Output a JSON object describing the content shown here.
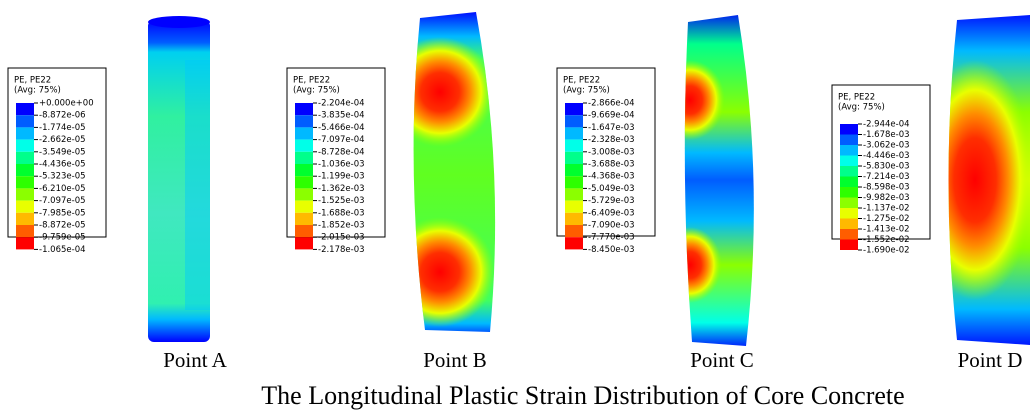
{
  "panels": [
    {
      "legend": {
        "title": "PE, PE22",
        "avg": "(Avg: 75%)",
        "labels": [
          "+0.000e+00",
          "-8.872e-06",
          "-1.774e-05",
          "-2.662e-05",
          "-3.549e-05",
          "-4.436e-05",
          "-5.323e-05",
          "-6.210e-05",
          "-7.097e-05",
          "-7.985e-05",
          "-8.872e-05",
          "-9.759e-05",
          "-1.065e-04"
        ]
      },
      "label": "Point A"
    },
    {
      "legend": {
        "title": "PE, PE22",
        "avg": "(Avg: 75%)",
        "labels": [
          "-2.204e-04",
          "-3.835e-04",
          "-5.466e-04",
          "-7.097e-04",
          "-8.728e-04",
          "-1.036e-03",
          "-1.199e-03",
          "-1.362e-03",
          "-1.525e-03",
          "-1.688e-03",
          "-1.852e-03",
          "-2.015e-03",
          "-2.178e-03"
        ]
      },
      "label": "Point B"
    },
    {
      "legend": {
        "title": "PE, PE22",
        "avg": "(Avg: 75%)",
        "labels": [
          "-2.866e-04",
          "-9.669e-04",
          "-1.647e-03",
          "-2.328e-03",
          "-3.008e-03",
          "-3.688e-03",
          "-4.368e-03",
          "-5.049e-03",
          "-5.729e-03",
          "-6.409e-03",
          "-7.090e-03",
          "-7.770e-03",
          "-8.450e-03"
        ]
      },
      "label": "Point C"
    },
    {
      "legend": {
        "title": "PE, PE22",
        "avg": "(Avg: 75%)",
        "labels": [
          "-2.944e-04",
          "-1.678e-03",
          "-3.062e-03",
          "-4.446e-03",
          "-5.830e-03",
          "-7.214e-03",
          "-8.598e-03",
          "-9.982e-03",
          "-1.137e-02",
          "-1.275e-02",
          "-1.413e-02",
          "-1.552e-02",
          "-1.690e-02"
        ]
      },
      "label": "Point D"
    }
  ],
  "caption": "The Longitudinal Plastic Strain Distribution of Core Concrete"
}
